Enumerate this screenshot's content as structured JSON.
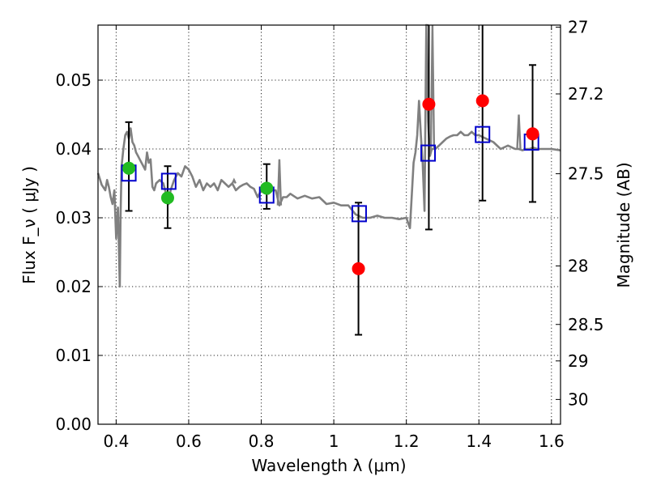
{
  "chart_data": {
    "type": "scatter",
    "xlabel": "Wavelength  λ (μm)",
    "ylabel": "Flux  F_ν  ( μJy )",
    "ylabel_right": "Magnitude (AB)",
    "xlim": [
      0.35,
      1.625
    ],
    "ylim": [
      0.0,
      0.058
    ],
    "grid": true,
    "x_ticks": [
      0.4,
      0.6,
      0.8,
      1.0,
      1.2,
      1.4,
      1.6
    ],
    "x_tick_labels": [
      "0.4",
      "0.6",
      "0.8",
      "1",
      "1.2",
      "1.4",
      "1.6"
    ],
    "y_ticks": [
      0.0,
      0.01,
      0.02,
      0.03,
      0.04,
      0.05
    ],
    "y_tick_labels": [
      "0.00",
      "0.01",
      "0.02",
      "0.03",
      "0.04",
      "0.05"
    ],
    "right_ticks": [
      {
        "label": "27",
        "flux": 0.0577
      },
      {
        "label": "27.2",
        "flux": 0.048
      },
      {
        "label": "27.5",
        "flux": 0.0364
      },
      {
        "label": "28",
        "flux": 0.023
      },
      {
        "label": "28.5",
        "flux": 0.0145
      },
      {
        "label": "29",
        "flux": 0.0092
      },
      {
        "label": "30",
        "flux": 0.0036
      }
    ],
    "colors": {
      "model": "#808080",
      "model_points": "#0000cc",
      "obs_detected": "#22bb22",
      "obs_other": "#ff0000",
      "errorbar": "#000000"
    },
    "model_spectrum": {
      "x": [
        0.35,
        0.36,
        0.37,
        0.375,
        0.38,
        0.385,
        0.39,
        0.395,
        0.4,
        0.405,
        0.41,
        0.412,
        0.415,
        0.42,
        0.425,
        0.43,
        0.435,
        0.44,
        0.445,
        0.45,
        0.455,
        0.46,
        0.465,
        0.47,
        0.48,
        0.485,
        0.49,
        0.495,
        0.5,
        0.505,
        0.51,
        0.52,
        0.53,
        0.54,
        0.545,
        0.55,
        0.56,
        0.57,
        0.58,
        0.59,
        0.6,
        0.61,
        0.62,
        0.63,
        0.64,
        0.65,
        0.66,
        0.67,
        0.68,
        0.69,
        0.7,
        0.71,
        0.72,
        0.73,
        0.74,
        0.75,
        0.76,
        0.77,
        0.78,
        0.79,
        0.8,
        0.81,
        0.82,
        0.83,
        0.84,
        0.85,
        0.86,
        0.87,
        0.88,
        0.9,
        0.92,
        0.94,
        0.96,
        0.98,
        1.0,
        1.02,
        1.04,
        1.06,
        1.08,
        1.1,
        1.12,
        1.14,
        1.16,
        1.18,
        1.2,
        1.21,
        1.22,
        1.225,
        1.23,
        1.235,
        1.24,
        1.245,
        1.25,
        1.255,
        1.26,
        1.265,
        1.27,
        1.28,
        1.29,
        1.3,
        1.31,
        1.32,
        1.33,
        1.34,
        1.35,
        1.36,
        1.37,
        1.38,
        1.39,
        1.4,
        1.42,
        1.44,
        1.46,
        1.48,
        1.5,
        1.51,
        1.52,
        1.53,
        1.54,
        1.55,
        1.56,
        1.58,
        1.6,
        1.625
      ],
      "y": [
        0.0365,
        0.0348,
        0.034,
        0.0355,
        0.0345,
        0.033,
        0.032,
        0.034,
        0.027,
        0.0315,
        0.02,
        0.03,
        0.0375,
        0.04,
        0.042,
        0.0425,
        0.0415,
        0.043,
        0.041,
        0.0405,
        0.0395,
        0.039,
        0.0385,
        0.038,
        0.037,
        0.0395,
        0.038,
        0.0385,
        0.0345,
        0.034,
        0.035,
        0.0355,
        0.035,
        0.033,
        0.032,
        0.034,
        0.0355,
        0.0365,
        0.036,
        0.0375,
        0.037,
        0.036,
        0.0345,
        0.0355,
        0.034,
        0.035,
        0.0345,
        0.035,
        0.034,
        0.0355,
        0.035,
        0.0345,
        0.035,
        0.034,
        0.0345,
        0.0348,
        0.035,
        0.0345,
        0.0342,
        0.033,
        0.034,
        0.034,
        0.0335,
        0.034,
        0.034,
        0.0318,
        0.033,
        0.033,
        0.0335,
        0.0328,
        0.0332,
        0.0328,
        0.033,
        0.032,
        0.0322,
        0.0318,
        0.0318,
        0.0305,
        0.03,
        0.03,
        0.0303,
        0.03,
        0.03,
        0.0298,
        0.03,
        0.0285,
        0.038,
        0.0395,
        0.042,
        0.047,
        0.042,
        0.038,
        0.031,
        0.058,
        0.044,
        0.039,
        0.04,
        0.04,
        0.0405,
        0.041,
        0.0415,
        0.0418,
        0.042,
        0.042,
        0.0425,
        0.042,
        0.042,
        0.0425,
        0.042,
        0.042,
        0.0415,
        0.041,
        0.04,
        0.0405,
        0.04,
        0.04,
        0.0398,
        0.04,
        0.04,
        0.0402,
        0.04,
        0.04,
        0.04,
        0.0398
      ],
      "spikes": [
        {
          "x": 0.725,
          "y": 0.0355
        },
        {
          "x": 0.85,
          "y": 0.0385
        },
        {
          "x": 1.257,
          "y": 0.058
        },
        {
          "x": 1.272,
          "y": 0.058
        },
        {
          "x": 1.51,
          "y": 0.045
        }
      ]
    },
    "model_points": {
      "x": [
        0.435,
        0.545,
        0.815,
        1.07,
        1.26,
        1.41,
        1.545
      ],
      "y": [
        0.0365,
        0.0353,
        0.0333,
        0.0306,
        0.0394,
        0.0421,
        0.041
      ]
    },
    "observed": [
      {
        "x": 0.435,
        "y": 0.0372,
        "err_lo": 0.0062,
        "err_hi": 0.0067,
        "color": "obs_detected"
      },
      {
        "x": 0.542,
        "y": 0.0329,
        "err_lo": 0.0044,
        "err_hi": 0.0046,
        "color": "obs_detected"
      },
      {
        "x": 0.815,
        "y": 0.0343,
        "err_lo": 0.003,
        "err_hi": 0.0035,
        "color": "obs_detected"
      },
      {
        "x": 1.068,
        "y": 0.0226,
        "err_lo": 0.0096,
        "err_hi": 0.0096,
        "color": "obs_other"
      },
      {
        "x": 1.262,
        "y": 0.0465,
        "err_lo": 0.0182,
        "err_hi": 0.058,
        "color": "obs_other"
      },
      {
        "x": 1.41,
        "y": 0.047,
        "err_lo": 0.0145,
        "err_hi": 0.058,
        "color": "obs_other"
      },
      {
        "x": 1.548,
        "y": 0.0422,
        "err_lo": 0.0099,
        "err_hi": 0.01,
        "color": "obs_other"
      }
    ]
  }
}
